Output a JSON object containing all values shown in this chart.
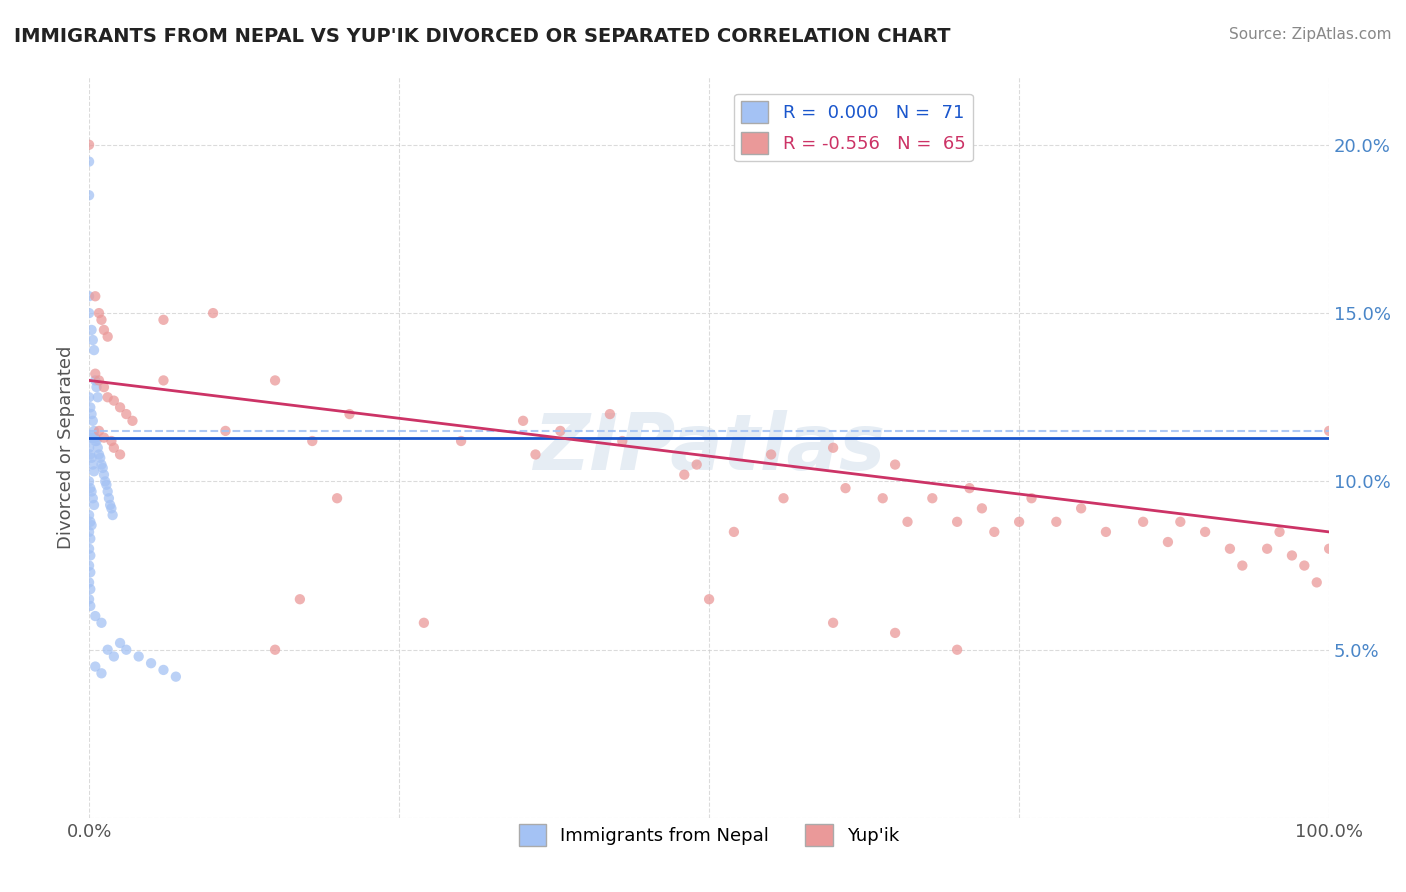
{
  "title": "IMMIGRANTS FROM NEPAL VS YUP'IK DIVORCED OR SEPARATED CORRELATION CHART",
  "source_text": "Source: ZipAtlas.com",
  "ylabel_label": "Divorced or Separated",
  "watermark": "ZIPatlas",
  "xmin": 0.0,
  "xmax": 1.0,
  "ymin": 0.0,
  "ymax": 0.22,
  "nepal_color": "#a4c2f4",
  "yupik_color": "#ea9999",
  "nepal_line_color": "#1a56cc",
  "yupik_line_color": "#cc3366",
  "dashed_line_color": "#a4c2f4",
  "grid_color": "#cccccc",
  "bg_color": "#ffffff",
  "nepal_line_y": 0.113,
  "yupik_line_y0": 0.13,
  "yupik_line_y1": 0.085,
  "nepal_points": [
    [
      0.0,
      0.195
    ],
    [
      0.0,
      0.185
    ],
    [
      0.0,
      0.155
    ],
    [
      0.0,
      0.15
    ],
    [
      0.002,
      0.145
    ],
    [
      0.003,
      0.142
    ],
    [
      0.004,
      0.139
    ],
    [
      0.005,
      0.13
    ],
    [
      0.006,
      0.128
    ],
    [
      0.007,
      0.125
    ],
    [
      0.0,
      0.125
    ],
    [
      0.001,
      0.122
    ],
    [
      0.002,
      0.12
    ],
    [
      0.003,
      0.118
    ],
    [
      0.004,
      0.115
    ],
    [
      0.005,
      0.113
    ],
    [
      0.006,
      0.112
    ],
    [
      0.007,
      0.11
    ],
    [
      0.008,
      0.108
    ],
    [
      0.009,
      0.107
    ],
    [
      0.01,
      0.105
    ],
    [
      0.011,
      0.104
    ],
    [
      0.012,
      0.102
    ],
    [
      0.013,
      0.1
    ],
    [
      0.014,
      0.099
    ],
    [
      0.015,
      0.097
    ],
    [
      0.016,
      0.095
    ],
    [
      0.017,
      0.093
    ],
    [
      0.018,
      0.092
    ],
    [
      0.019,
      0.09
    ],
    [
      0.0,
      0.113
    ],
    [
      0.001,
      0.113
    ],
    [
      0.002,
      0.113
    ],
    [
      0.003,
      0.113
    ],
    [
      0.004,
      0.113
    ],
    [
      0.005,
      0.112
    ],
    [
      0.0,
      0.11
    ],
    [
      0.001,
      0.108
    ],
    [
      0.002,
      0.107
    ],
    [
      0.003,
      0.105
    ],
    [
      0.004,
      0.103
    ],
    [
      0.0,
      0.1
    ],
    [
      0.001,
      0.098
    ],
    [
      0.002,
      0.097
    ],
    [
      0.003,
      0.095
    ],
    [
      0.004,
      0.093
    ],
    [
      0.0,
      0.09
    ],
    [
      0.001,
      0.088
    ],
    [
      0.002,
      0.087
    ],
    [
      0.0,
      0.085
    ],
    [
      0.001,
      0.083
    ],
    [
      0.0,
      0.08
    ],
    [
      0.001,
      0.078
    ],
    [
      0.0,
      0.075
    ],
    [
      0.001,
      0.073
    ],
    [
      0.0,
      0.07
    ],
    [
      0.001,
      0.068
    ],
    [
      0.0,
      0.065
    ],
    [
      0.001,
      0.063
    ],
    [
      0.005,
      0.06
    ],
    [
      0.01,
      0.058
    ],
    [
      0.005,
      0.045
    ],
    [
      0.01,
      0.043
    ],
    [
      0.015,
      0.05
    ],
    [
      0.02,
      0.048
    ],
    [
      0.025,
      0.052
    ],
    [
      0.03,
      0.05
    ],
    [
      0.04,
      0.048
    ],
    [
      0.05,
      0.046
    ],
    [
      0.06,
      0.044
    ],
    [
      0.07,
      0.042
    ]
  ],
  "yupik_points": [
    [
      0.0,
      0.2
    ],
    [
      0.005,
      0.155
    ],
    [
      0.008,
      0.15
    ],
    [
      0.01,
      0.148
    ],
    [
      0.012,
      0.145
    ],
    [
      0.015,
      0.143
    ],
    [
      0.005,
      0.132
    ],
    [
      0.008,
      0.13
    ],
    [
      0.012,
      0.128
    ],
    [
      0.015,
      0.125
    ],
    [
      0.02,
      0.124
    ],
    [
      0.025,
      0.122
    ],
    [
      0.03,
      0.12
    ],
    [
      0.035,
      0.118
    ],
    [
      0.008,
      0.115
    ],
    [
      0.012,
      0.113
    ],
    [
      0.018,
      0.112
    ],
    [
      0.02,
      0.11
    ],
    [
      0.025,
      0.108
    ],
    [
      0.06,
      0.148
    ],
    [
      0.06,
      0.13
    ],
    [
      0.1,
      0.15
    ],
    [
      0.11,
      0.115
    ],
    [
      0.15,
      0.13
    ],
    [
      0.18,
      0.112
    ],
    [
      0.2,
      0.095
    ],
    [
      0.21,
      0.12
    ],
    [
      0.3,
      0.112
    ],
    [
      0.35,
      0.118
    ],
    [
      0.36,
      0.108
    ],
    [
      0.38,
      0.115
    ],
    [
      0.42,
      0.12
    ],
    [
      0.43,
      0.112
    ],
    [
      0.48,
      0.102
    ],
    [
      0.49,
      0.105
    ],
    [
      0.52,
      0.085
    ],
    [
      0.55,
      0.108
    ],
    [
      0.56,
      0.095
    ],
    [
      0.6,
      0.11
    ],
    [
      0.61,
      0.098
    ],
    [
      0.64,
      0.095
    ],
    [
      0.65,
      0.105
    ],
    [
      0.66,
      0.088
    ],
    [
      0.68,
      0.095
    ],
    [
      0.7,
      0.088
    ],
    [
      0.71,
      0.098
    ],
    [
      0.72,
      0.092
    ],
    [
      0.73,
      0.085
    ],
    [
      0.75,
      0.088
    ],
    [
      0.76,
      0.095
    ],
    [
      0.78,
      0.088
    ],
    [
      0.8,
      0.092
    ],
    [
      0.82,
      0.085
    ],
    [
      0.85,
      0.088
    ],
    [
      0.87,
      0.082
    ],
    [
      0.88,
      0.088
    ],
    [
      0.9,
      0.085
    ],
    [
      0.92,
      0.08
    ],
    [
      0.93,
      0.075
    ],
    [
      0.95,
      0.08
    ],
    [
      0.96,
      0.085
    ],
    [
      0.97,
      0.078
    ],
    [
      0.98,
      0.075
    ],
    [
      0.99,
      0.07
    ],
    [
      1.0,
      0.08
    ],
    [
      1.0,
      0.115
    ],
    [
      0.15,
      0.05
    ],
    [
      0.17,
      0.065
    ],
    [
      0.27,
      0.058
    ],
    [
      0.5,
      0.065
    ],
    [
      0.6,
      0.058
    ],
    [
      0.65,
      0.055
    ],
    [
      0.7,
      0.05
    ]
  ]
}
